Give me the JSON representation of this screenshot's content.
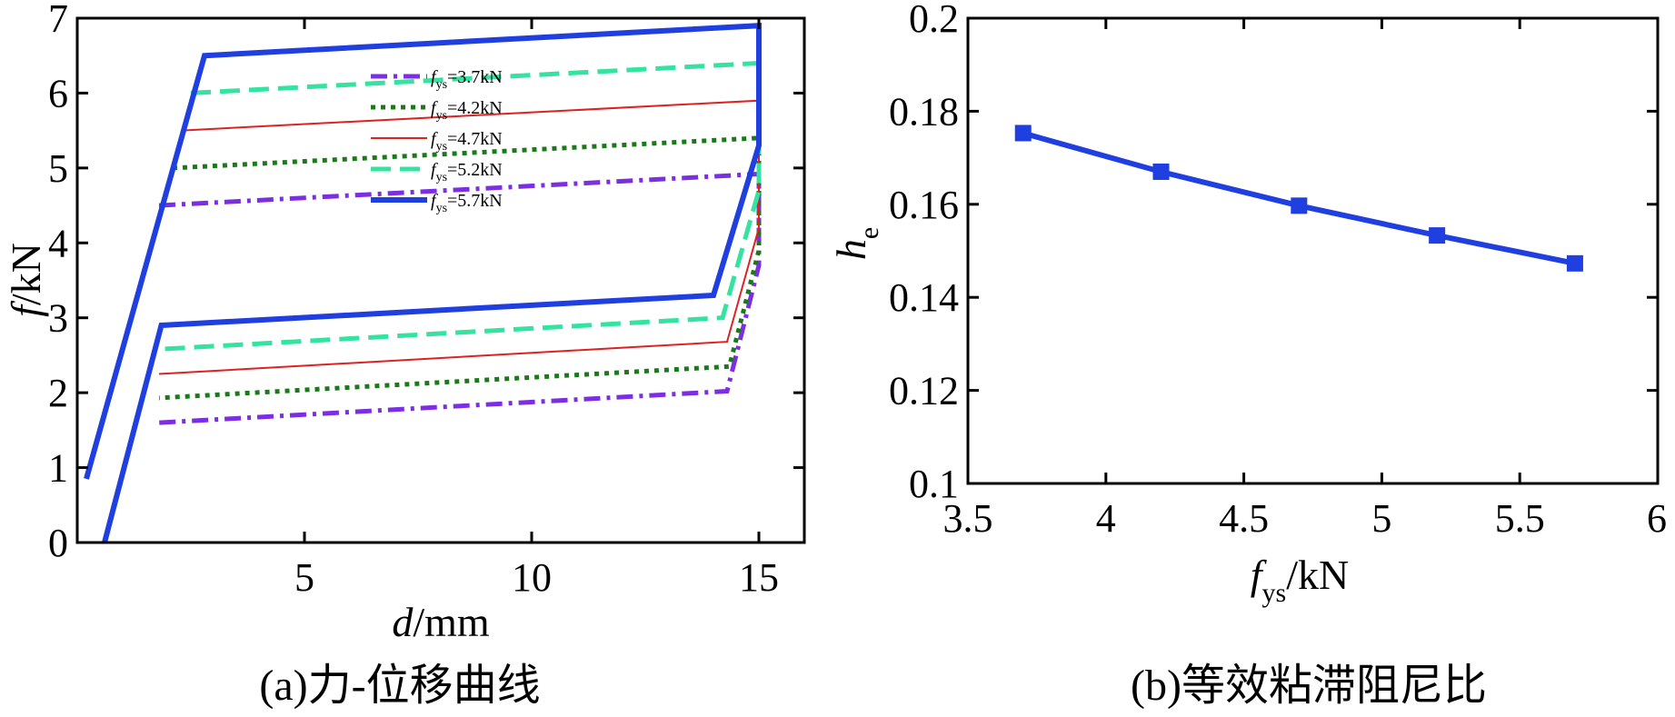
{
  "chart_data": [
    {
      "type": "line",
      "panel": "a",
      "caption": "(a)力-位移曲线",
      "xlabel_italic": "d",
      "xlabel_rest": "/mm",
      "ylabel_italic": "f",
      "ylabel_rest": "/kN",
      "xlim": [
        0,
        16
      ],
      "ylim": [
        0,
        7
      ],
      "xticks": [
        "5",
        "10",
        "15"
      ],
      "xtick_values": [
        5,
        10,
        15
      ],
      "yticks": [
        "0",
        "1",
        "2",
        "3",
        "4",
        "5",
        "6",
        "7"
      ],
      "ytick_values": [
        0,
        1,
        2,
        3,
        4,
        5,
        6,
        7
      ],
      "series": [
        {
          "name": "fys=3.7kN",
          "legend_main": "f",
          "legend_sub": "ys",
          "legend_rest": "=3.7kN",
          "color": "#7b2fe0",
          "dash": "dashdot",
          "width": 5,
          "points": [
            [
              1.8,
              4.5
            ],
            [
              15.0,
              4.92
            ],
            [
              15.0,
              3.7
            ],
            [
              14.3,
              2.02
            ],
            [
              1.8,
              1.6
            ]
          ]
        },
        {
          "name": "fys=4.2kN",
          "legend_main": "f",
          "legend_sub": "ys",
          "legend_rest": "=4.2kN",
          "color": "#1a7a1a",
          "dash": "dotted",
          "width": 5,
          "points": [
            [
              2.1,
              5.0
            ],
            [
              15.0,
              5.4
            ],
            [
              15.0,
              3.9
            ],
            [
              14.35,
              2.35
            ],
            [
              1.8,
              1.93
            ]
          ]
        },
        {
          "name": "fys=4.7kN",
          "legend_main": "f",
          "legend_sub": "ys",
          "legend_rest": "=4.7kN",
          "color": "#dd2222",
          "dash": "solid",
          "width": 2,
          "points": [
            [
              2.3,
              5.5
            ],
            [
              15.0,
              5.9
            ],
            [
              15.0,
              4.2
            ],
            [
              14.3,
              2.68
            ],
            [
              1.8,
              2.25
            ]
          ]
        },
        {
          "name": "fys=5.2kN",
          "legend_main": "f",
          "legend_sub": "ys",
          "legend_rest": "=5.2kN",
          "color": "#33e39f",
          "dash": "dashed",
          "width": 5,
          "points": [
            [
              2.5,
              6.0
            ],
            [
              15.0,
              6.4
            ],
            [
              15.0,
              4.7
            ],
            [
              14.2,
              3.0
            ],
            [
              1.8,
              2.58
            ]
          ]
        },
        {
          "name": "fys=5.7kN",
          "legend_main": "f",
          "legend_sub": "ys",
          "legend_rest": "=5.7kN",
          "color": "#1f3fe0",
          "dash": "solid",
          "width": 6,
          "points": [
            [
              0.6,
              0.0
            ],
            [
              1.85,
              2.9
            ],
            [
              14.0,
              3.3
            ],
            [
              15.0,
              5.3
            ],
            [
              15.0,
              6.9
            ],
            [
              2.8,
              6.5
            ],
            [
              0.2,
              0.85
            ]
          ]
        }
      ]
    },
    {
      "type": "line",
      "panel": "b",
      "caption": "(b)等效粘滞阻尼比",
      "xlabel_italic": "f",
      "xlabel_sub": "ys",
      "xlabel_rest": "/kN",
      "ylabel_italic": "h",
      "ylabel_sub": "e",
      "xlim": [
        3.5,
        6
      ],
      "ylim": [
        0.1,
        0.2
      ],
      "xticks": [
        "3.5",
        "4",
        "4.5",
        "5",
        "5.5",
        "6"
      ],
      "xtick_values": [
        3.5,
        4,
        4.5,
        5,
        5.5,
        6
      ],
      "yticks": [
        "0.1",
        "0.12",
        "0.14",
        "0.16",
        "0.18",
        "0.2"
      ],
      "ytick_values": [
        0.1,
        0.12,
        0.14,
        0.16,
        0.18,
        0.2
      ],
      "series": [
        {
          "name": "he",
          "color": "#1f3fe0",
          "marker": "square",
          "x": [
            3.7,
            4.2,
            4.7,
            5.2,
            5.7
          ],
          "y": [
            0.1753,
            0.167,
            0.1597,
            0.1533,
            0.1473
          ]
        }
      ]
    }
  ]
}
